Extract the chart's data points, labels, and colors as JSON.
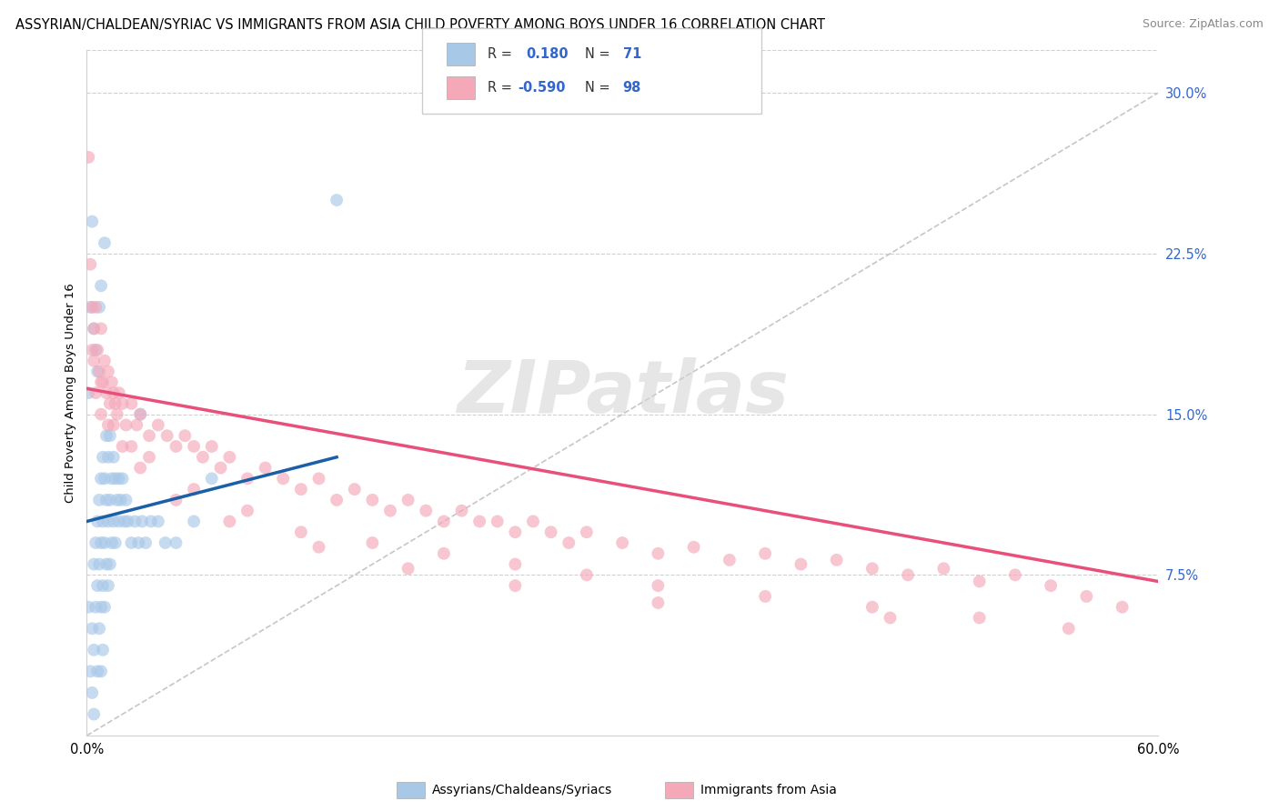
{
  "title": "ASSYRIAN/CHALDEAN/SYRIAC VS IMMIGRANTS FROM ASIA CHILD POVERTY AMONG BOYS UNDER 16 CORRELATION CHART",
  "source": "Source: ZipAtlas.com",
  "ylabel": "Child Poverty Among Boys Under 16",
  "xlim": [
    0.0,
    0.6
  ],
  "ylim": [
    0.0,
    0.32
  ],
  "ytick_vals": [
    0.075,
    0.15,
    0.225,
    0.3
  ],
  "ytick_labels": [
    "7.5%",
    "15.0%",
    "22.5%",
    "30.0%"
  ],
  "blue_color": "#a8c8e8",
  "pink_color": "#f4a8b8",
  "blue_line_color": "#1a5fa8",
  "pink_line_color": "#e8507a",
  "dash_line_color": "#c0c0c0",
  "watermark": "ZIPatlas",
  "legend_blue_r": "0.180",
  "legend_blue_n": "71",
  "legend_pink_r": "-0.590",
  "legend_pink_n": "98",
  "legend_text_color": "#3366cc",
  "legend_label_color": "#333333",
  "blue_line_x0": 0.0,
  "blue_line_x1": 0.14,
  "blue_line_y0": 0.1,
  "blue_line_y1": 0.13,
  "pink_line_x0": 0.0,
  "pink_line_x1": 0.6,
  "pink_line_y0": 0.162,
  "pink_line_y1": 0.072,
  "blue_scatter_x": [
    0.001,
    0.002,
    0.003,
    0.003,
    0.004,
    0.004,
    0.004,
    0.005,
    0.005,
    0.006,
    0.006,
    0.006,
    0.007,
    0.007,
    0.007,
    0.008,
    0.008,
    0.008,
    0.008,
    0.009,
    0.009,
    0.009,
    0.009,
    0.01,
    0.01,
    0.01,
    0.011,
    0.011,
    0.011,
    0.012,
    0.012,
    0.012,
    0.013,
    0.013,
    0.013,
    0.014,
    0.014,
    0.015,
    0.015,
    0.016,
    0.016,
    0.017,
    0.018,
    0.018,
    0.019,
    0.02,
    0.021,
    0.022,
    0.023,
    0.025,
    0.027,
    0.029,
    0.031,
    0.033,
    0.036,
    0.04,
    0.044,
    0.05,
    0.06,
    0.07,
    0.001,
    0.002,
    0.003,
    0.004,
    0.005,
    0.006,
    0.007,
    0.008,
    0.01,
    0.03,
    0.14
  ],
  "blue_scatter_y": [
    0.06,
    0.03,
    0.05,
    0.02,
    0.08,
    0.04,
    0.01,
    0.09,
    0.06,
    0.1,
    0.07,
    0.03,
    0.11,
    0.08,
    0.05,
    0.12,
    0.09,
    0.06,
    0.03,
    0.13,
    0.1,
    0.07,
    0.04,
    0.12,
    0.09,
    0.06,
    0.14,
    0.11,
    0.08,
    0.13,
    0.1,
    0.07,
    0.14,
    0.11,
    0.08,
    0.12,
    0.09,
    0.13,
    0.1,
    0.12,
    0.09,
    0.11,
    0.1,
    0.12,
    0.11,
    0.12,
    0.1,
    0.11,
    0.1,
    0.09,
    0.1,
    0.09,
    0.1,
    0.09,
    0.1,
    0.1,
    0.09,
    0.09,
    0.1,
    0.12,
    0.16,
    0.2,
    0.24,
    0.19,
    0.18,
    0.17,
    0.2,
    0.21,
    0.23,
    0.15,
    0.25
  ],
  "pink_scatter_x": [
    0.001,
    0.002,
    0.003,
    0.003,
    0.004,
    0.005,
    0.005,
    0.006,
    0.007,
    0.008,
    0.009,
    0.01,
    0.011,
    0.012,
    0.013,
    0.014,
    0.015,
    0.016,
    0.017,
    0.018,
    0.02,
    0.022,
    0.025,
    0.028,
    0.03,
    0.035,
    0.04,
    0.045,
    0.05,
    0.055,
    0.06,
    0.065,
    0.07,
    0.075,
    0.08,
    0.09,
    0.1,
    0.11,
    0.12,
    0.13,
    0.14,
    0.15,
    0.16,
    0.17,
    0.18,
    0.19,
    0.2,
    0.21,
    0.22,
    0.23,
    0.24,
    0.25,
    0.26,
    0.27,
    0.28,
    0.3,
    0.32,
    0.34,
    0.36,
    0.38,
    0.4,
    0.42,
    0.44,
    0.46,
    0.48,
    0.5,
    0.52,
    0.54,
    0.56,
    0.58,
    0.004,
    0.008,
    0.015,
    0.025,
    0.035,
    0.06,
    0.09,
    0.12,
    0.16,
    0.2,
    0.24,
    0.28,
    0.32,
    0.38,
    0.44,
    0.5,
    0.55,
    0.008,
    0.012,
    0.02,
    0.03,
    0.05,
    0.08,
    0.13,
    0.18,
    0.24,
    0.32,
    0.45
  ],
  "pink_scatter_y": [
    0.27,
    0.22,
    0.2,
    0.18,
    0.19,
    0.16,
    0.2,
    0.18,
    0.17,
    0.19,
    0.165,
    0.175,
    0.16,
    0.17,
    0.155,
    0.165,
    0.16,
    0.155,
    0.15,
    0.16,
    0.155,
    0.145,
    0.155,
    0.145,
    0.15,
    0.14,
    0.145,
    0.14,
    0.135,
    0.14,
    0.135,
    0.13,
    0.135,
    0.125,
    0.13,
    0.12,
    0.125,
    0.12,
    0.115,
    0.12,
    0.11,
    0.115,
    0.11,
    0.105,
    0.11,
    0.105,
    0.1,
    0.105,
    0.1,
    0.1,
    0.095,
    0.1,
    0.095,
    0.09,
    0.095,
    0.09,
    0.085,
    0.088,
    0.082,
    0.085,
    0.08,
    0.082,
    0.078,
    0.075,
    0.078,
    0.072,
    0.075,
    0.07,
    0.065,
    0.06,
    0.175,
    0.165,
    0.145,
    0.135,
    0.13,
    0.115,
    0.105,
    0.095,
    0.09,
    0.085,
    0.08,
    0.075,
    0.07,
    0.065,
    0.06,
    0.055,
    0.05,
    0.15,
    0.145,
    0.135,
    0.125,
    0.11,
    0.1,
    0.088,
    0.078,
    0.07,
    0.062,
    0.055
  ]
}
